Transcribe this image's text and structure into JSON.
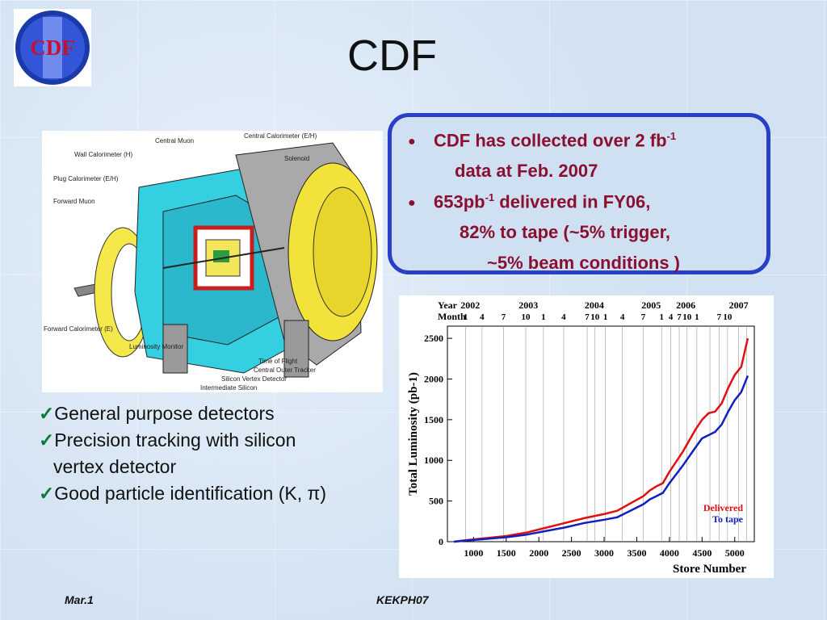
{
  "slide": {
    "title": "CDF"
  },
  "logo": {
    "text": "CDF",
    "numeral": "II"
  },
  "callout": {
    "line1": "CDF has collected over 2 fb",
    "line1_sup": "-1",
    "line2": "data at Feb. 2007",
    "line3": "653pb",
    "line3_sup": "-1",
    "line3_rest": " delivered in FY06,",
    "line4": "82% to tape (~5% trigger,",
    "line5": "~5% beam conditions )"
  },
  "features": [
    "General purpose detectors",
    "Precision tracking with silicon",
    "vertex detector",
    "Good particle identification (K, π)"
  ],
  "detector_labels": [
    "Central Muon",
    "Central Calorimeter (E/H)",
    "Wall Calorimeter (H)",
    "Solenoid",
    "Plug Calorimeter (E/H)",
    "Forward Muon",
    "Forward Calorimeter (E)",
    "Luminosity Monitor",
    "Time of Flight",
    "Central Outer Tracker",
    "Silicon Vertex Detector",
    "Intermediate Silicon"
  ],
  "colors": {
    "delivered": "#e01010",
    "to_tape": "#1020c0",
    "callout_border": "#2a3fc8",
    "callout_text": "#8b1030"
  },
  "footer": {
    "left": "Mar.1",
    "center": "KEKPH07"
  },
  "chart_data": {
    "type": "line",
    "ylabel": "Total Luminosity (pb-1)",
    "xlabel": "Store Number",
    "xlim": [
      600,
      5300
    ],
    "ylim": [
      0,
      2650
    ],
    "xticks": [
      1000,
      1500,
      2000,
      2500,
      3000,
      3500,
      4000,
      4500,
      5000
    ],
    "yticks": [
      0,
      500,
      1000,
      1500,
      2000,
      2500
    ],
    "year_row_label": "Year",
    "month_row_label": "Month",
    "years": [
      {
        "label": "2002",
        "x": 950
      },
      {
        "label": "2003",
        "x": 1840
      },
      {
        "label": "2004",
        "x": 2850
      },
      {
        "label": "2005",
        "x": 3720
      },
      {
        "label": "2006",
        "x": 4250
      },
      {
        "label": "2007",
        "x": 5060
      }
    ],
    "months": [
      {
        "label": "1",
        "x": 880
      },
      {
        "label": "4",
        "x": 1130
      },
      {
        "label": "7",
        "x": 1460
      },
      {
        "label": "10",
        "x": 1800
      },
      {
        "label": "1",
        "x": 2070
      },
      {
        "label": "4",
        "x": 2380
      },
      {
        "label": "7",
        "x": 2740
      },
      {
        "label": "10",
        "x": 2860
      },
      {
        "label": "1",
        "x": 3020
      },
      {
        "label": "4",
        "x": 3280
      },
      {
        "label": "7",
        "x": 3600
      },
      {
        "label": "1",
        "x": 3880
      },
      {
        "label": "4",
        "x": 4020
      },
      {
        "label": "7",
        "x": 4150
      },
      {
        "label": "10",
        "x": 4270
      },
      {
        "label": "1",
        "x": 4420
      },
      {
        "label": "7",
        "x": 4760
      },
      {
        "label": "10",
        "x": 4890
      }
    ],
    "month_gridlines": [
      880,
      1130,
      1460,
      1800,
      2070,
      2380,
      2740,
      2860,
      3020,
      3280,
      3600,
      3880,
      4020,
      4150,
      4270,
      4420,
      4620,
      4760,
      4890,
      5060,
      5180
    ],
    "series": [
      {
        "name": "Delivered",
        "x": [
          700,
          900,
          1200,
          1500,
          1800,
          2100,
          2400,
          2700,
          3000,
          3200,
          3400,
          3600,
          3700,
          3800,
          3900,
          4000,
          4200,
          4400,
          4500,
          4600,
          4700,
          4800,
          4900,
          5000,
          5100,
          5200
        ],
        "values": [
          0,
          20,
          45,
          70,
          110,
          170,
          230,
          290,
          340,
          380,
          470,
          560,
          630,
          680,
          720,
          860,
          1100,
          1380,
          1500,
          1580,
          1600,
          1700,
          1890,
          2050,
          2150,
          2500
        ]
      },
      {
        "name": "To tape",
        "x": [
          700,
          900,
          1200,
          1500,
          1800,
          2100,
          2400,
          2700,
          3000,
          3200,
          3400,
          3600,
          3700,
          3800,
          3900,
          4000,
          4200,
          4400,
          4500,
          4600,
          4700,
          4800,
          4900,
          5000,
          5100,
          5200
        ],
        "values": [
          0,
          15,
          35,
          55,
          85,
          130,
          175,
          230,
          270,
          300,
          380,
          460,
          520,
          560,
          600,
          720,
          930,
          1160,
          1270,
          1310,
          1350,
          1440,
          1600,
          1740,
          1840,
          2040
        ]
      }
    ]
  }
}
